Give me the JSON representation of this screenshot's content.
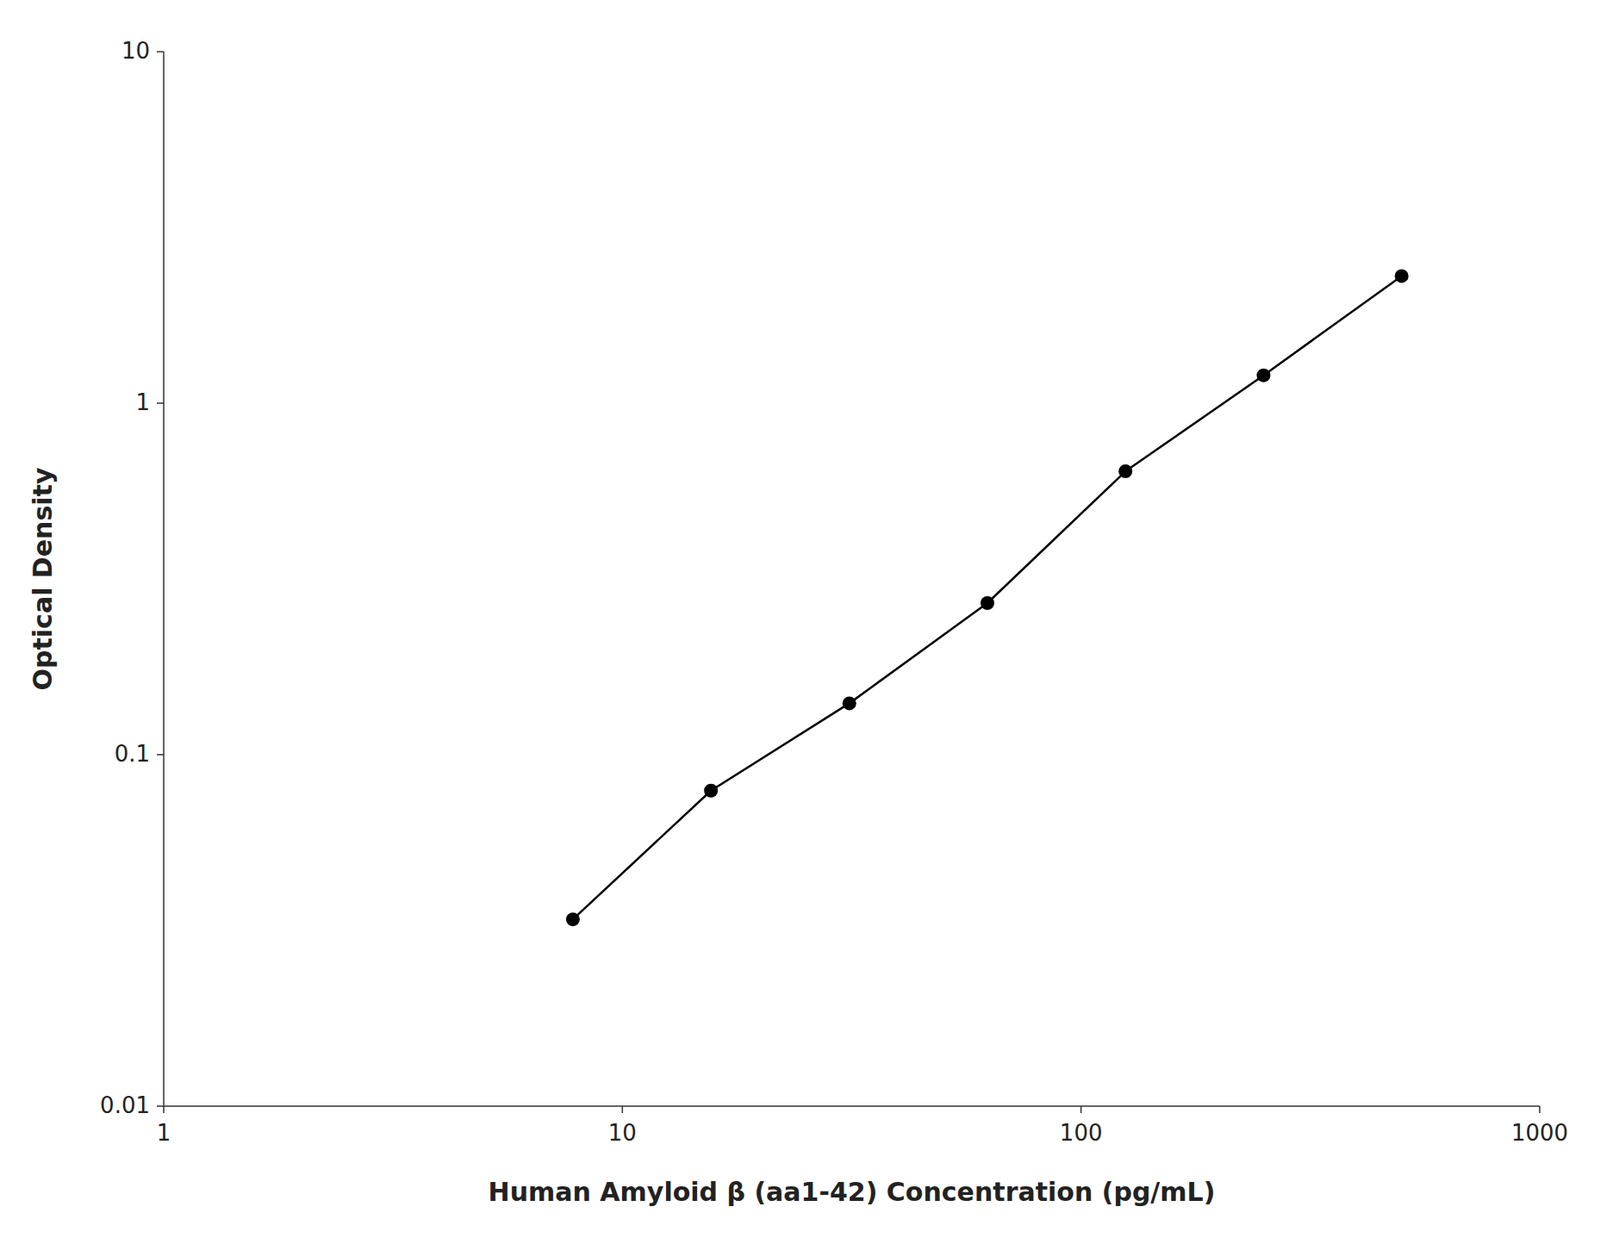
{
  "chart_data": {
    "type": "line",
    "x": [
      7.8,
      15.6,
      31.25,
      62.5,
      125,
      250,
      500
    ],
    "values": [
      0.034,
      0.079,
      0.14,
      0.27,
      0.64,
      1.2,
      2.3
    ],
    "xlabel": "Human Amyloid β (aa1-42) Concentration (pg/mL)",
    "ylabel": "Optical Density",
    "xlim": [
      1,
      1000
    ],
    "ylim": [
      0.01,
      10
    ],
    "xticks": [
      1,
      10,
      100,
      1000
    ],
    "yticks": [
      0.01,
      0.1,
      1,
      10
    ],
    "log": true,
    "grid": false,
    "color": "#000000",
    "marker": "circle"
  }
}
